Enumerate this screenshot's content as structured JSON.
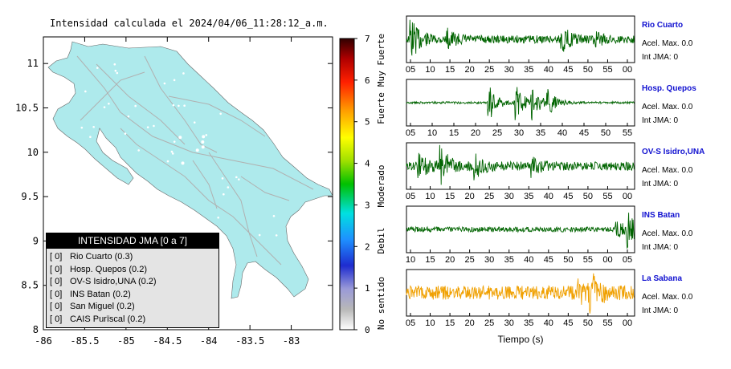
{
  "map": {
    "title": "Intensidad calculada el 2024/04/06_11:28:12_a.m.",
    "x_ticks": [
      "-86",
      "-85.5",
      "-85",
      "-84.5",
      "-84",
      "-83.5",
      "-83"
    ],
    "y_ticks": [
      "11",
      "10.5",
      "10",
      "9.5",
      "9",
      "8.5",
      "8"
    ],
    "xlim": [
      -86,
      -82.5
    ],
    "ylim": [
      8,
      11.3
    ],
    "land_color": "#aeeaec",
    "road_color": "#b0b0b0"
  },
  "legend": {
    "title": "INTENSIDAD JMA [0 a 7]",
    "items": [
      {
        "level": "[ 0]",
        "label": "Rio Cuarto (0.3)"
      },
      {
        "level": "[ 0]",
        "label": "Hosp. Quepos (0.2)"
      },
      {
        "level": "[ 0]",
        "label": "OV-S Isidro,UNA (0.2)"
      },
      {
        "level": "[ 0]",
        "label": "INS Batan (0.2)"
      },
      {
        "level": "[ 0]",
        "label": "San Miguel (0.2)"
      },
      {
        "level": "[ 0]",
        "label": "CAIS Purïscal (0.2)"
      }
    ]
  },
  "colorbar": {
    "ticks": [
      "7",
      "6",
      "5",
      "4",
      "3",
      "2",
      "1",
      "0"
    ],
    "range": [
      0,
      7
    ],
    "category_labels": [
      "Muy Fuerte",
      "Fuerte",
      "Moderado",
      "Debil",
      "No sentido"
    ]
  },
  "chart_data": [
    {
      "type": "line",
      "station": "Rio Cuarto",
      "color": "#006400",
      "x_ticks": [
        "05",
        "10",
        "15",
        "20",
        "25",
        "30",
        "35",
        "40",
        "45",
        "50",
        "55",
        "00"
      ],
      "accel_label": "Acel. Max. 0.0",
      "int_label": "Int JMA: 0",
      "bursts": [
        {
          "t": 0.02,
          "a": 0.95
        },
        {
          "t": 0.18,
          "a": 0.35
        },
        {
          "t": 0.68,
          "a": 0.55
        },
        {
          "t": 0.82,
          "a": 0.3
        }
      ],
      "noise": 0.18
    },
    {
      "type": "line",
      "station": "Hosp. Quepos",
      "color": "#006400",
      "x_ticks": [
        "05",
        "10",
        "15",
        "20",
        "25",
        "30",
        "35",
        "40",
        "45",
        "50",
        "55"
      ],
      "accel_label": "Acel. Max. 0.0",
      "int_label": "Int JMA: 0",
      "bursts": [
        {
          "t": 0.36,
          "a": 0.95
        },
        {
          "t": 0.48,
          "a": 0.75
        },
        {
          "t": 0.55,
          "a": 0.7
        },
        {
          "t": 0.62,
          "a": 0.5
        }
      ],
      "noise": 0.05
    },
    {
      "type": "line",
      "station": "OV-S Isidro,UNA",
      "color": "#006400",
      "x_ticks": [
        "05",
        "10",
        "15",
        "20",
        "25",
        "30",
        "35",
        "40",
        "45",
        "50",
        "55",
        "00"
      ],
      "accel_label": "Acel. Max. 0.0",
      "int_label": "Int JMA: 0",
      "bursts": [
        {
          "t": 0.05,
          "a": 0.6
        },
        {
          "t": 0.15,
          "a": 0.9
        },
        {
          "t": 0.3,
          "a": 0.5
        },
        {
          "t": 0.55,
          "a": 0.35
        }
      ],
      "noise": 0.2
    },
    {
      "type": "line",
      "station": "INS Batan",
      "color": "#006400",
      "x_ticks": [
        "10",
        "15",
        "20",
        "25",
        "30",
        "35",
        "40",
        "45",
        "50",
        "55",
        "00",
        "05"
      ],
      "accel_label": "Acel. Max. 0.0",
      "int_label": "Int JMA: 0",
      "bursts": [
        {
          "t": 0.97,
          "a": 0.95
        },
        {
          "t": 0.92,
          "a": 0.4
        }
      ],
      "noise": 0.12
    },
    {
      "type": "line",
      "station": "La Sabana",
      "color": "#f0a000",
      "x_ticks": [
        "05",
        "10",
        "15",
        "20",
        "25",
        "30",
        "35",
        "40",
        "45",
        "50",
        "55",
        "00"
      ],
      "accel_label": "Acel. Max. 0.0",
      "int_label": "Int JMA: 0",
      "bursts": [
        {
          "t": 0.8,
          "a": 0.95
        },
        {
          "t": 0.75,
          "a": 0.4
        }
      ],
      "noise": 0.32
    }
  ],
  "waveform_xlabel": "Tiempo (s)"
}
